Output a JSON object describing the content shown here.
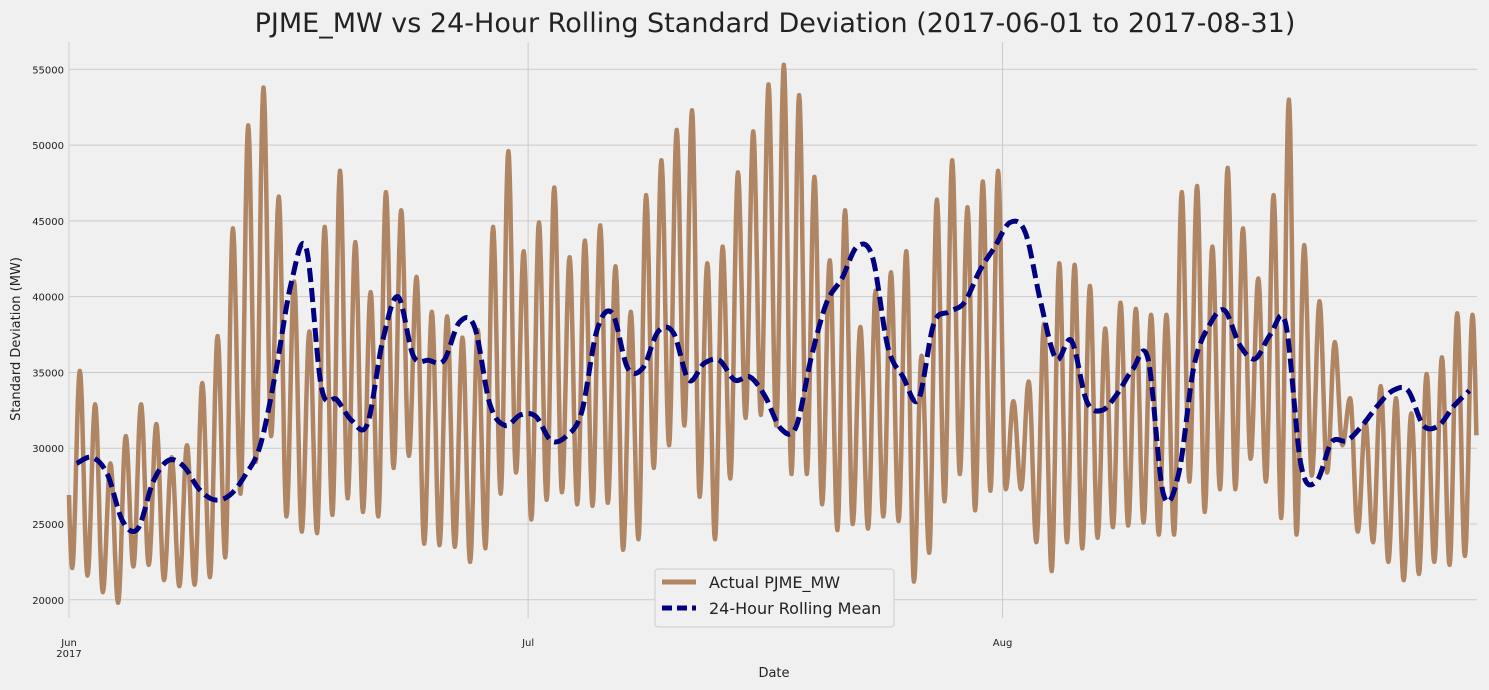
{
  "chart_data": {
    "type": "line",
    "title": "PJME_MW vs 24-Hour Rolling Standard Deviation (2017-06-01 to 2017-08-31)",
    "xlabel": "Date",
    "ylabel": "Standard Deviation (MW)",
    "xlim": [
      "2017-06-01",
      "2017-08-31"
    ],
    "ylim": [
      18800,
      56800
    ],
    "yticks": [
      20000,
      25000,
      30000,
      35000,
      40000,
      45000,
      50000,
      55000
    ],
    "ytick_labels": [
      "20000",
      "25000",
      "30000",
      "35000",
      "40000",
      "45000",
      "50000",
      "55000"
    ],
    "xticks": [
      {
        "date": "2017-06-01",
        "label": "Jun",
        "sublabel": "2017"
      },
      {
        "date": "2017-07-01",
        "label": "Jul",
        "sublabel": ""
      },
      {
        "date": "2017-08-01",
        "label": "Aug",
        "sublabel": ""
      }
    ],
    "grid": true,
    "legend_position": "bottom-center",
    "series": [
      {
        "name": "Actual PJME_MW",
        "color": "#b08563",
        "style": "solid",
        "sampling": "daily minimum and maximum",
        "dates": [
          "2017-06-01",
          "2017-06-02",
          "2017-06-03",
          "2017-06-04",
          "2017-06-05",
          "2017-06-06",
          "2017-06-07",
          "2017-06-08",
          "2017-06-09",
          "2017-06-10",
          "2017-06-11",
          "2017-06-12",
          "2017-06-13",
          "2017-06-14",
          "2017-06-15",
          "2017-06-16",
          "2017-06-17",
          "2017-06-18",
          "2017-06-19",
          "2017-06-20",
          "2017-06-21",
          "2017-06-22",
          "2017-06-23",
          "2017-06-24",
          "2017-06-25",
          "2017-06-26",
          "2017-06-27",
          "2017-06-28",
          "2017-06-29",
          "2017-06-30",
          "2017-07-01",
          "2017-07-02",
          "2017-07-03",
          "2017-07-04",
          "2017-07-05",
          "2017-07-06",
          "2017-07-07",
          "2017-07-08",
          "2017-07-09",
          "2017-07-10",
          "2017-07-11",
          "2017-07-12",
          "2017-07-13",
          "2017-07-14",
          "2017-07-15",
          "2017-07-16",
          "2017-07-17",
          "2017-07-18",
          "2017-07-19",
          "2017-07-20",
          "2017-07-21",
          "2017-07-22",
          "2017-07-23",
          "2017-07-24",
          "2017-07-25",
          "2017-07-26",
          "2017-07-27",
          "2017-07-28",
          "2017-07-29",
          "2017-07-30",
          "2017-07-31",
          "2017-08-01",
          "2017-08-02",
          "2017-08-03",
          "2017-08-04",
          "2017-08-05",
          "2017-08-06",
          "2017-08-07",
          "2017-08-08",
          "2017-08-09",
          "2017-08-10",
          "2017-08-11",
          "2017-08-12",
          "2017-08-13",
          "2017-08-14",
          "2017-08-15",
          "2017-08-16",
          "2017-08-17",
          "2017-08-18",
          "2017-08-19",
          "2017-08-20",
          "2017-08-21",
          "2017-08-22",
          "2017-08-23",
          "2017-08-24",
          "2017-08-25",
          "2017-08-26",
          "2017-08-27",
          "2017-08-28",
          "2017-08-29",
          "2017-08-30",
          "2017-08-31"
        ],
        "daily_min": [
          22100,
          21600,
          20500,
          19800,
          22200,
          22300,
          21300,
          20900,
          21000,
          21500,
          22800,
          27000,
          29100,
          30800,
          25500,
          24500,
          24400,
          25600,
          26700,
          25800,
          25500,
          28700,
          29500,
          23700,
          23600,
          23500,
          22500,
          23400,
          27000,
          28400,
          25300,
          26600,
          27100,
          26300,
          26200,
          26400,
          23300,
          24000,
          28700,
          30200,
          31500,
          26800,
          24000,
          28000,
          32000,
          32200,
          31500,
          28300,
          28300,
          26300,
          24600,
          25000,
          24700,
          25500,
          25200,
          21200,
          23100,
          26500,
          28300,
          25900,
          27200,
          27300,
          27300,
          23800,
          21900,
          23800,
          23400,
          24100,
          24800,
          24900,
          25100,
          24300,
          24300,
          27800,
          25800,
          27300,
          27300,
          29300,
          27800,
          25400,
          24300,
          28200,
          28400,
          30200,
          24500,
          23800,
          22500,
          21300,
          21700,
          22500,
          22300,
          22900
        ],
        "daily_max": [
          35100,
          32900,
          29000,
          30800,
          32900,
          31600,
          29400,
          30200,
          34300,
          37400,
          44500,
          51300,
          53800,
          46600,
          41000,
          37700,
          44600,
          48300,
          43600,
          40300,
          46900,
          45700,
          41300,
          39000,
          38700,
          37300,
          37800,
          44600,
          49600,
          43000,
          44900,
          47200,
          42600,
          43700,
          44700,
          42000,
          39000,
          46700,
          49000,
          51000,
          52300,
          42200,
          43300,
          48200,
          50900,
          54000,
          55300,
          53300,
          47900,
          42400,
          45700,
          38000,
          40400,
          41600,
          43000,
          36100,
          46400,
          49000,
          45900,
          47600,
          48300,
          33100,
          34400,
          38200,
          42200,
          42100,
          40700,
          37900,
          39600,
          39200,
          38800,
          38800,
          46900,
          47300,
          43300,
          48500,
          44500,
          41200,
          46700,
          53000,
          43400,
          39700,
          37000,
          33300,
          31800,
          34100,
          33300,
          32300,
          34900,
          36000,
          38900,
          38800
        ]
      },
      {
        "name": "24-Hour Rolling Mean",
        "color": "#000080",
        "style": "dashed",
        "x": [
          "2017-06-01",
          "2017-06-02",
          "2017-06-03",
          "2017-06-04",
          "2017-06-05",
          "2017-06-06",
          "2017-06-07",
          "2017-06-08",
          "2017-06-09",
          "2017-06-10",
          "2017-06-11",
          "2017-06-12",
          "2017-06-13",
          "2017-06-14",
          "2017-06-15",
          "2017-06-16",
          "2017-06-17",
          "2017-06-18",
          "2017-06-19",
          "2017-06-20",
          "2017-06-21",
          "2017-06-22",
          "2017-06-23",
          "2017-06-24",
          "2017-06-25",
          "2017-06-26",
          "2017-06-27",
          "2017-06-28",
          "2017-06-29",
          "2017-06-30",
          "2017-07-01",
          "2017-07-02",
          "2017-07-03",
          "2017-07-04",
          "2017-07-05",
          "2017-07-06",
          "2017-07-07",
          "2017-07-08",
          "2017-07-09",
          "2017-07-10",
          "2017-07-11",
          "2017-07-12",
          "2017-07-13",
          "2017-07-14",
          "2017-07-15",
          "2017-07-16",
          "2017-07-17",
          "2017-07-18",
          "2017-07-19",
          "2017-07-20",
          "2017-07-21",
          "2017-07-22",
          "2017-07-23",
          "2017-07-24",
          "2017-07-25",
          "2017-07-26",
          "2017-07-27",
          "2017-07-28",
          "2017-07-29",
          "2017-07-30",
          "2017-07-31",
          "2017-08-01",
          "2017-08-02",
          "2017-08-03",
          "2017-08-04",
          "2017-08-05",
          "2017-08-06",
          "2017-08-07",
          "2017-08-08",
          "2017-08-09",
          "2017-08-10",
          "2017-08-11",
          "2017-08-12",
          "2017-08-13",
          "2017-08-14",
          "2017-08-15",
          "2017-08-16",
          "2017-08-17",
          "2017-08-18",
          "2017-08-19",
          "2017-08-20",
          "2017-08-21",
          "2017-08-22",
          "2017-08-23",
          "2017-08-24",
          "2017-08-25",
          "2017-08-26",
          "2017-08-27",
          "2017-08-28",
          "2017-08-29",
          "2017-08-30",
          "2017-08-31"
        ],
        "y": [
          29000,
          29400,
          28300,
          25200,
          24700,
          27800,
          29200,
          28800,
          27300,
          26600,
          26900,
          28200,
          30200,
          35000,
          40800,
          43200,
          34000,
          33200,
          31800,
          31600,
          37100,
          40000,
          36100,
          35800,
          35800,
          38300,
          38000,
          32900,
          31500,
          32200,
          32100,
          30500,
          30800,
          32400,
          37800,
          38900,
          35300,
          35300,
          37700,
          37600,
          34500,
          35600,
          35800,
          34500,
          34700,
          33400,
          31300,
          31400,
          36000,
          39600,
          41200,
          43300,
          42600,
          36700,
          34700,
          33200,
          38200,
          39000,
          39600,
          41700,
          43300,
          44900,
          44200,
          39600,
          35900,
          37100,
          33100,
          32500,
          33600,
          35200,
          35900,
          27000,
          28300,
          35400,
          38100,
          39100,
          36800,
          35900,
          37500,
          38200,
          28900,
          27800,
          30400,
          30500,
          31500,
          32800,
          33800,
          33800,
          31500,
          31500,
          32800,
          33800
        ]
      }
    ]
  }
}
